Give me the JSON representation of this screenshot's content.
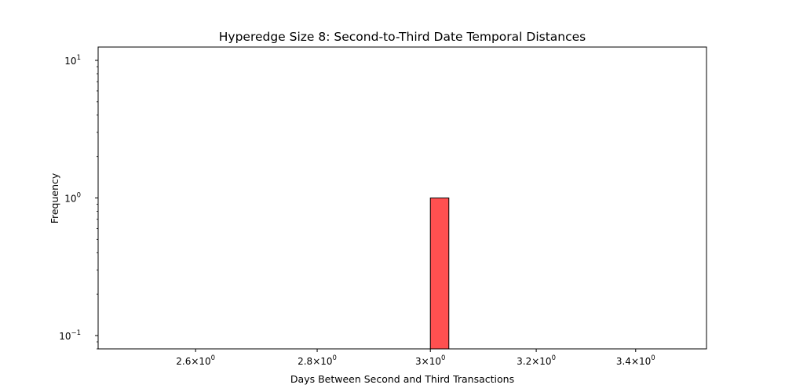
{
  "chart_data": {
    "type": "bar",
    "title": "Hyperedge Size 8: Second-to-Third Date Temporal Distances",
    "xlabel": "Days Between Second and Third Transactions",
    "ylabel": "Frequency",
    "x_scale": "log",
    "y_scale": "log",
    "xlim": [
      2.45,
      3.55
    ],
    "ylim": [
      0.08,
      12.5
    ],
    "x_ticks": [
      {
        "value": 2.6,
        "mantissa": "2.6",
        "base": "10",
        "exponent": "0"
      },
      {
        "value": 2.8,
        "mantissa": "2.8",
        "base": "10",
        "exponent": "0"
      },
      {
        "value": 3.0,
        "mantissa": "3",
        "base": "10",
        "exponent": "0"
      },
      {
        "value": 3.2,
        "mantissa": "3.2",
        "base": "10",
        "exponent": "0"
      },
      {
        "value": 3.4,
        "mantissa": "3.4",
        "base": "10",
        "exponent": "0"
      }
    ],
    "y_ticks": [
      {
        "value": 0.1,
        "base": "10",
        "exponent": "−1"
      },
      {
        "value": 1,
        "base": "10",
        "exponent": "0"
      },
      {
        "value": 10,
        "base": "10",
        "exponent": "1"
      }
    ],
    "bins": [
      {
        "x0": 3.0,
        "x1": 3.034,
        "count": 1
      }
    ],
    "bar_color": "#ff5050",
    "bar_edge_color": "#000000",
    "grid": false
  }
}
